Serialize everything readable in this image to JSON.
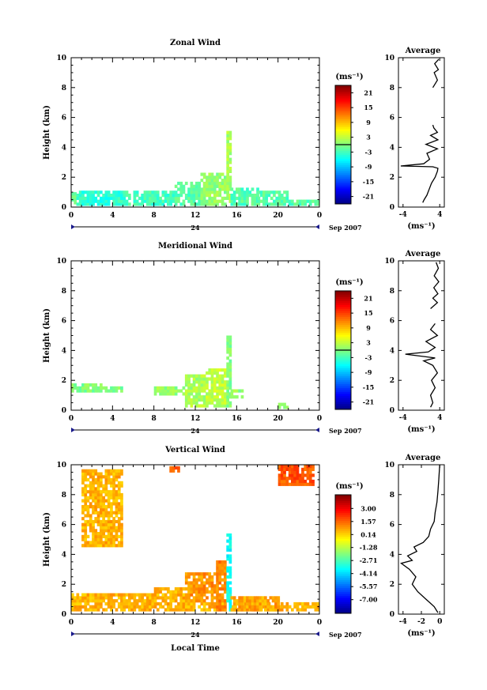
{
  "figure": {
    "xlabel": "Local Time",
    "date_label": "Sep 2007",
    "day_label": "24",
    "unit_label": "(ms⁻¹)",
    "profile_unit_label": "(ms⁻¹)"
  },
  "chart_data": [
    {
      "type": "heatmap",
      "title": "Zonal Wind",
      "xlabel": "",
      "ylabel": "Height (km)",
      "xlim": [
        0,
        24
      ],
      "ylim": [
        0,
        10
      ],
      "x_ticks": [
        "0",
        "4",
        "8",
        "12",
        "16",
        "20",
        "0"
      ],
      "y_ticks": [
        "0",
        "2",
        "4",
        "6",
        "8",
        "10"
      ],
      "colorbar": {
        "label": "(ms⁻¹)",
        "range": [
          -24,
          24
        ],
        "ticks": [
          "21",
          "15",
          "9",
          "3",
          "-3",
          "-9",
          "-15",
          "-21"
        ],
        "tick_values": [
          21,
          15,
          9,
          3,
          -3,
          -9,
          -15,
          -21
        ],
        "zero_line": 0
      },
      "regions": [
        {
          "t": [
            0,
            0.5
          ],
          "h": [
            0.2,
            1.0
          ],
          "v": -1
        },
        {
          "t": [
            0.5,
            5
          ],
          "h": [
            0.1,
            1.1
          ],
          "v": -4
        },
        {
          "t": [
            5,
            10
          ],
          "h": [
            0.1,
            1.1
          ],
          "v": -3
        },
        {
          "t": [
            10,
            12.5
          ],
          "h": [
            0.1,
            1.6
          ],
          "v": -2
        },
        {
          "t": [
            12.5,
            15
          ],
          "h": [
            0.1,
            2.3
          ],
          "v": 1
        },
        {
          "t": [
            15,
            15.4
          ],
          "h": [
            0.1,
            5.0
          ],
          "v": 2
        },
        {
          "t": [
            15.4,
            18
          ],
          "h": [
            0.1,
            1.3
          ],
          "v": -2
        },
        {
          "t": [
            18,
            21
          ],
          "h": [
            0.1,
            1.0
          ],
          "v": -2
        },
        {
          "t": [
            21,
            24
          ],
          "h": [
            0.1,
            0.4
          ],
          "v": -2
        }
      ],
      "profile": {
        "title": "Average",
        "xlabel": "(ms⁻¹)",
        "xlim": [
          -5,
          5
        ],
        "x_ticks": [
          "-4",
          "4"
        ],
        "x_tick_values": [
          -4,
          4
        ],
        "y_ticks": [
          "0",
          "2",
          "4",
          "6",
          "8",
          "10"
        ],
        "points": [
          [
            0.3,
            0.3
          ],
          [
            0.6,
            0.5
          ],
          [
            1.2,
            0.8
          ],
          [
            1.7,
            1.2
          ],
          [
            2.2,
            1.6
          ],
          [
            3.0,
            2.0
          ],
          [
            3.5,
            2.4
          ],
          [
            3.6,
            2.6
          ],
          [
            2.5,
            2.7
          ],
          [
            -4.5,
            2.75
          ],
          [
            0.5,
            2.9
          ],
          [
            1.8,
            3.2
          ],
          [
            1.2,
            3.6
          ],
          [
            3.5,
            3.9
          ],
          [
            1.0,
            4.2
          ],
          [
            3.6,
            4.5
          ],
          [
            2.0,
            4.8
          ],
          [
            3.5,
            5.0
          ],
          [
            2.7,
            5.3
          ],
          [
            2.5,
            5.5
          ]
        ],
        "upper_points": [
          [
            2.5,
            8.0
          ],
          [
            3.5,
            8.5
          ],
          [
            2.8,
            9.0
          ],
          [
            3.7,
            9.2
          ],
          [
            2.9,
            9.6
          ],
          [
            3.8,
            9.9
          ]
        ]
      }
    },
    {
      "type": "heatmap",
      "title": "Meridional Wind",
      "xlabel": "",
      "ylabel": "Height (km)",
      "xlim": [
        0,
        24
      ],
      "ylim": [
        0,
        10
      ],
      "x_ticks": [
        "0",
        "4",
        "8",
        "12",
        "16",
        "20",
        "0"
      ],
      "y_ticks": [
        "0",
        "2",
        "4",
        "6",
        "8",
        "10"
      ],
      "colorbar": {
        "label": "(ms⁻¹)",
        "range": [
          -24,
          24
        ],
        "ticks": [
          "21",
          "15",
          "9",
          "3",
          "-3",
          "-9",
          "-15",
          "-21"
        ],
        "tick_values": [
          21,
          15,
          9,
          3,
          -3,
          -9,
          -15,
          -21
        ],
        "zero_line": 0
      },
      "regions": [
        {
          "t": [
            0,
            3
          ],
          "h": [
            1.2,
            1.7
          ],
          "v": 0
        },
        {
          "t": [
            3,
            5
          ],
          "h": [
            1.2,
            1.6
          ],
          "v": 0
        },
        {
          "t": [
            8,
            11
          ],
          "h": [
            1.0,
            1.6
          ],
          "v": 1
        },
        {
          "t": [
            11,
            13
          ],
          "h": [
            0.2,
            2.4
          ],
          "v": 2
        },
        {
          "t": [
            13,
            15
          ],
          "h": [
            0.2,
            2.8
          ],
          "v": 3
        },
        {
          "t": [
            15,
            15.4
          ],
          "h": [
            0.2,
            5.0
          ],
          "v": 0
        },
        {
          "t": [
            15.4,
            16.5
          ],
          "h": [
            0.8,
            1.4
          ],
          "v": 1
        },
        {
          "t": [
            20,
            21
          ],
          "h": [
            0.1,
            0.4
          ],
          "v": 0
        }
      ],
      "profile": {
        "title": "Average",
        "xlabel": "(ms⁻¹)",
        "xlim": [
          -5,
          5
        ],
        "x_ticks": [
          "-4",
          "4"
        ],
        "x_tick_values": [
          -4,
          4
        ],
        "y_ticks": [
          "0",
          "2",
          "4",
          "6",
          "8",
          "10"
        ],
        "points": [
          [
            2.0,
            0.2
          ],
          [
            2.5,
            0.5
          ],
          [
            2.0,
            1.0
          ],
          [
            3.0,
            1.5
          ],
          [
            2.2,
            2.0
          ],
          [
            3.5,
            2.5
          ],
          [
            2.5,
            3.0
          ],
          [
            0.5,
            3.3
          ],
          [
            3.0,
            3.5
          ],
          [
            -3.5,
            3.75
          ],
          [
            1.5,
            3.9
          ],
          [
            3.0,
            4.2
          ],
          [
            1.0,
            4.6
          ],
          [
            3.5,
            5.0
          ],
          [
            2.0,
            5.4
          ],
          [
            3.0,
            5.8
          ]
        ],
        "upper_points": [
          [
            2.0,
            6.8
          ],
          [
            3.5,
            7.2
          ],
          [
            2.5,
            7.5
          ],
          [
            3.6,
            7.8
          ],
          [
            2.7,
            8.2
          ],
          [
            3.8,
            8.6
          ],
          [
            2.8,
            9.0
          ],
          [
            3.7,
            9.5
          ],
          [
            3.2,
            9.9
          ]
        ]
      }
    },
    {
      "type": "heatmap",
      "title": "Vertical Wind",
      "xlabel": "Local Time",
      "ylabel": "Height (km)",
      "xlim": [
        0,
        24
      ],
      "ylim": [
        0,
        10
      ],
      "x_ticks": [
        "0",
        "4",
        "8",
        "12",
        "16",
        "20",
        "0"
      ],
      "y_ticks": [
        "0",
        "2",
        "4",
        "6",
        "8",
        "10"
      ],
      "colorbar": {
        "label": "(ms⁻¹)",
        "range": [
          -8.5,
          4.5
        ],
        "ticks": [
          "3.00",
          "1.57",
          "0.14",
          "-1.28",
          "-2.71",
          "-4.14",
          "-5.57",
          "-7.00"
        ],
        "tick_values": [
          3.0,
          1.57,
          0.14,
          -1.28,
          -2.71,
          -4.14,
          -5.57,
          -7.0
        ],
        "zero_line": null
      },
      "regions": [
        {
          "t": [
            0,
            24
          ],
          "h": [
            0.2,
            0.8
          ],
          "v": 0.6
        },
        {
          "t": [
            0,
            8
          ],
          "h": [
            0.8,
            1.4
          ],
          "v": 0.6
        },
        {
          "t": [
            8,
            11
          ],
          "h": [
            0.8,
            1.8
          ],
          "v": 0.6
        },
        {
          "t": [
            11,
            14
          ],
          "h": [
            0.8,
            2.8
          ],
          "v": 1.0
        },
        {
          "t": [
            14,
            15
          ],
          "h": [
            0.2,
            3.6
          ],
          "v": 1.2
        },
        {
          "t": [
            15,
            15.4
          ],
          "h": [
            0.2,
            5.3
          ],
          "v": -3.5
        },
        {
          "t": [
            15.4,
            20
          ],
          "h": [
            0.2,
            1.1
          ],
          "v": 0.8
        },
        {
          "t": [
            1.0,
            5.0
          ],
          "h": [
            4.5,
            9.6
          ],
          "v": 0.6
        },
        {
          "t": [
            20.0,
            23.5
          ],
          "h": [
            8.6,
            9.9
          ],
          "v": 1.8
        },
        {
          "t": [
            9.5,
            10.5
          ],
          "h": [
            9.5,
            9.9
          ],
          "v": 1.8
        }
      ],
      "profile": {
        "title": "Average",
        "xlabel": "(ms⁻¹)",
        "xlim": [
          -4.5,
          0.5
        ],
        "x_ticks": [
          "-4",
          "-2",
          "0"
        ],
        "x_tick_values": [
          -4,
          -2,
          0
        ],
        "y_ticks": [
          "0",
          "2",
          "4",
          "6",
          "8",
          "10"
        ],
        "points": [
          [
            -0.2,
            0.1
          ],
          [
            -0.6,
            0.5
          ],
          [
            -1.5,
            1.0
          ],
          [
            -2.4,
            1.5
          ],
          [
            -3.0,
            2.0
          ],
          [
            -2.6,
            2.5
          ],
          [
            -3.3,
            3.0
          ],
          [
            -4.2,
            3.4
          ],
          [
            -3.0,
            3.6
          ],
          [
            -3.5,
            3.9
          ],
          [
            -2.5,
            4.2
          ],
          [
            -2.8,
            4.5
          ],
          [
            -1.8,
            4.8
          ],
          [
            -1.2,
            5.2
          ],
          [
            -1.0,
            5.7
          ],
          [
            -0.6,
            6.2
          ],
          [
            -0.5,
            6.8
          ],
          [
            -0.3,
            7.5
          ],
          [
            -0.2,
            8.2
          ],
          [
            -0.1,
            9.0
          ],
          [
            0.0,
            10.0
          ]
        ]
      }
    }
  ]
}
